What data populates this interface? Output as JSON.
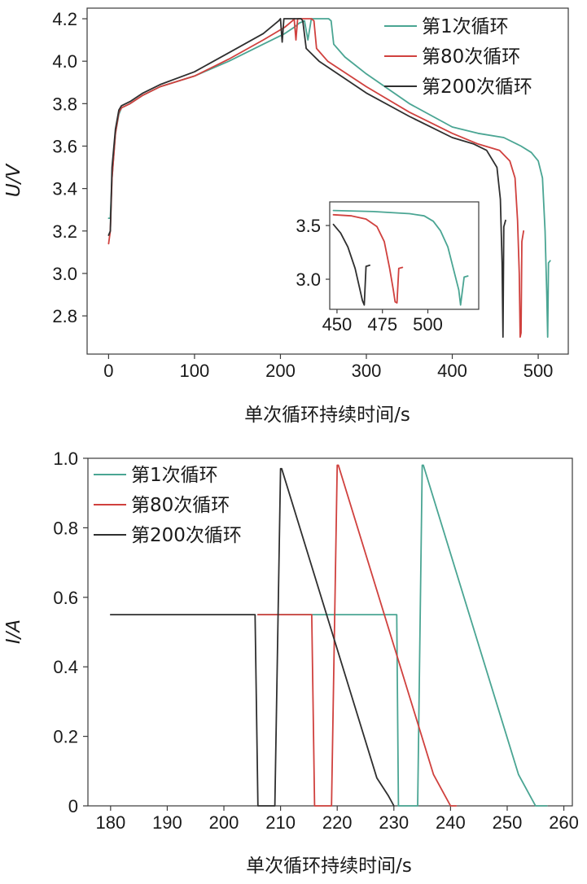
{
  "chart_data": [
    {
      "type": "line",
      "xlabel": "单次循环持续时间/s",
      "ylabel": "U/V",
      "xlim": [
        -25,
        535
      ],
      "ylim": [
        2.62,
        4.25
      ],
      "xticks": [
        0,
        100,
        200,
        300,
        400,
        500
      ],
      "yticks": [
        2.8,
        3.0,
        3.2,
        3.4,
        3.6,
        3.8,
        4.0,
        4.2
      ],
      "xtick_labels": [
        "0",
        "100",
        "200",
        "300",
        "400",
        "500"
      ],
      "ytick_labels": [
        "2.8",
        "3.0",
        "3.2",
        "3.4",
        "3.6",
        "3.8",
        "4.0",
        "4.2"
      ],
      "legend_position": "top-right",
      "series": [
        {
          "name": "第1次循环",
          "color": "#4aa593",
          "points": [
            [
              0,
              3.26
            ],
            [
              2,
              3.26
            ],
            [
              4,
              3.45
            ],
            [
              8,
              3.66
            ],
            [
              12,
              3.75
            ],
            [
              15,
              3.78
            ],
            [
              25,
              3.8
            ],
            [
              40,
              3.84
            ],
            [
              60,
              3.88
            ],
            [
              100,
              3.93
            ],
            [
              140,
              4.0
            ],
            [
              180,
              4.08
            ],
            [
              205,
              4.13
            ],
            [
              216,
              4.16
            ],
            [
              222,
              4.18
            ],
            [
              228,
              4.19
            ],
            [
              232,
              4.1
            ],
            [
              236,
              4.2
            ],
            [
              256,
              4.2
            ],
            [
              259,
              4.19
            ],
            [
              262,
              4.08
            ],
            [
              275,
              4.02
            ],
            [
              300,
              3.94
            ],
            [
              350,
              3.8
            ],
            [
              400,
              3.69
            ],
            [
              430,
              3.66
            ],
            [
              460,
              3.64
            ],
            [
              480,
              3.6
            ],
            [
              492,
              3.57
            ],
            [
              500,
              3.53
            ],
            [
              505,
              3.45
            ],
            [
              508,
              3.2
            ],
            [
              510,
              2.9
            ],
            [
              511,
              2.7
            ],
            [
              512,
              3.05
            ],
            [
              514,
              3.06
            ]
          ]
        },
        {
          "name": "第80次循环",
          "color": "#d0413e",
          "points": [
            [
              0,
              3.14
            ],
            [
              2,
              3.2
            ],
            [
              4,
              3.45
            ],
            [
              8,
              3.66
            ],
            [
              12,
              3.76
            ],
            [
              15,
              3.78
            ],
            [
              25,
              3.8
            ],
            [
              40,
              3.84
            ],
            [
              60,
              3.88
            ],
            [
              100,
              3.93
            ],
            [
              140,
              4.01
            ],
            [
              180,
              4.1
            ],
            [
              205,
              4.16
            ],
            [
              214,
              4.19
            ],
            [
              216,
              4.2
            ],
            [
              218,
              4.1
            ],
            [
              220,
              4.2
            ],
            [
              236,
              4.2
            ],
            [
              239,
              4.19
            ],
            [
              242,
              4.06
            ],
            [
              255,
              4.0
            ],
            [
              300,
              3.88
            ],
            [
              350,
              3.76
            ],
            [
              400,
              3.66
            ],
            [
              430,
              3.61
            ],
            [
              455,
              3.58
            ],
            [
              467,
              3.53
            ],
            [
              473,
              3.45
            ],
            [
              476,
              3.25
            ],
            [
              478,
              3.0
            ],
            [
              479,
              2.7
            ],
            [
              480,
              2.72
            ],
            [
              481,
              3.15
            ],
            [
              483,
              3.2
            ]
          ]
        },
        {
          "name": "第200次循环",
          "color": "#2f2f2f",
          "points": [
            [
              0,
              3.18
            ],
            [
              2,
              3.2
            ],
            [
              4,
              3.5
            ],
            [
              8,
              3.68
            ],
            [
              12,
              3.77
            ],
            [
              15,
              3.79
            ],
            [
              25,
              3.81
            ],
            [
              40,
              3.85
            ],
            [
              60,
              3.89
            ],
            [
              100,
              3.95
            ],
            [
              140,
              4.04
            ],
            [
              180,
              4.13
            ],
            [
              198,
              4.19
            ],
            [
              200,
              4.2
            ],
            [
              202,
              4.09
            ],
            [
              204,
              4.2
            ],
            [
              224,
              4.2
            ],
            [
              226,
              4.19
            ],
            [
              230,
              4.06
            ],
            [
              245,
              4.0
            ],
            [
              300,
              3.85
            ],
            [
              350,
              3.74
            ],
            [
              400,
              3.64
            ],
            [
              425,
              3.61
            ],
            [
              440,
              3.58
            ],
            [
              452,
              3.5
            ],
            [
              456,
              3.35
            ],
            [
              458,
              3.05
            ],
            [
              459,
              2.7
            ],
            [
              460,
              3.22
            ],
            [
              462,
              3.25
            ]
          ]
        }
      ],
      "inset": {
        "xlim": [
          446,
          528
        ],
        "ylim": [
          2.72,
          3.72
        ],
        "xticks": [
          450,
          475,
          500
        ],
        "yticks": [
          3.0,
          3.5
        ],
        "xtick_labels": [
          "450",
          "475",
          "500"
        ],
        "ytick_labels": [
          "3.0",
          "3.5"
        ],
        "series": [
          {
            "name": "第1次循环",
            "color": "#4aa593",
            "points": [
              [
                448,
                3.64
              ],
              [
                470,
                3.63
              ],
              [
                490,
                3.61
              ],
              [
                498,
                3.59
              ],
              [
                503,
                3.54
              ],
              [
                507,
                3.45
              ],
              [
                511,
                3.3
              ],
              [
                514,
                3.1
              ],
              [
                517,
                2.9
              ],
              [
                518,
                2.76
              ],
              [
                520,
                3.02
              ],
              [
                522,
                3.03
              ]
            ]
          },
          {
            "name": "第80次循环",
            "color": "#d0413e",
            "points": [
              [
                448,
                3.6
              ],
              [
                458,
                3.59
              ],
              [
                466,
                3.56
              ],
              [
                472,
                3.49
              ],
              [
                476,
                3.35
              ],
              [
                479,
                3.1
              ],
              [
                481,
                2.9
              ],
              [
                482,
                2.79
              ],
              [
                483,
                2.78
              ],
              [
                484,
                3.1
              ],
              [
                486,
                3.11
              ]
            ]
          },
          {
            "name": "第200次循环",
            "color": "#2f2f2f",
            "points": [
              [
                448,
                3.51
              ],
              [
                452,
                3.43
              ],
              [
                456,
                3.3
              ],
              [
                460,
                3.1
              ],
              [
                462,
                2.95
              ],
              [
                464,
                2.8
              ],
              [
                465,
                2.76
              ],
              [
                466,
                3.12
              ],
              [
                468,
                3.13
              ]
            ]
          }
        ]
      }
    },
    {
      "type": "line",
      "xlabel": "单次循环持续时间/s",
      "ylabel": "I/A",
      "xlim": [
        176,
        261.5
      ],
      "ylim": [
        0,
        1.0
      ],
      "xticks": [
        180,
        190,
        200,
        210,
        220,
        230,
        240,
        250,
        260
      ],
      "yticks": [
        0,
        0.2,
        0.4,
        0.6,
        0.8,
        1.0
      ],
      "xtick_labels": [
        "180",
        "190",
        "200",
        "210",
        "220",
        "230",
        "240",
        "250",
        "260"
      ],
      "ytick_labels": [
        "0",
        "0.2",
        "0.4",
        "0.6",
        "0.8",
        "1.0"
      ],
      "legend_position": "top-left",
      "series": [
        {
          "name": "第1次循环",
          "color": "#4aa593",
          "points": [
            [
              206,
              0.55
            ],
            [
              230.5,
              0.55
            ],
            [
              230.8,
              0
            ],
            [
              234.2,
              0
            ],
            [
              235,
              0.98
            ],
            [
              235.2,
              0.98
            ],
            [
              252,
              0.09
            ],
            [
              254,
              0.03
            ],
            [
              255,
              0
            ],
            [
              257,
              0
            ]
          ]
        },
        {
          "name": "第80次循环",
          "color": "#d0413e",
          "points": [
            [
              206,
              0.55
            ],
            [
              215.5,
              0.55
            ],
            [
              216,
              0
            ],
            [
              219,
              0
            ],
            [
              220,
              0.98
            ],
            [
              220.2,
              0.98
            ],
            [
              237,
              0.09
            ],
            [
              239,
              0.03
            ],
            [
              240,
              0
            ],
            [
              241,
              0
            ]
          ]
        },
        {
          "name": "第200次循环",
          "color": "#2f2f2f",
          "points": [
            [
              180,
              0.55
            ],
            [
              205.5,
              0.55
            ],
            [
              206,
              0
            ],
            [
              209,
              0
            ],
            [
              210,
              0.97
            ],
            [
              210.2,
              0.97
            ],
            [
              227,
              0.08
            ],
            [
              229,
              0.03
            ],
            [
              230,
              0
            ]
          ]
        }
      ]
    }
  ]
}
